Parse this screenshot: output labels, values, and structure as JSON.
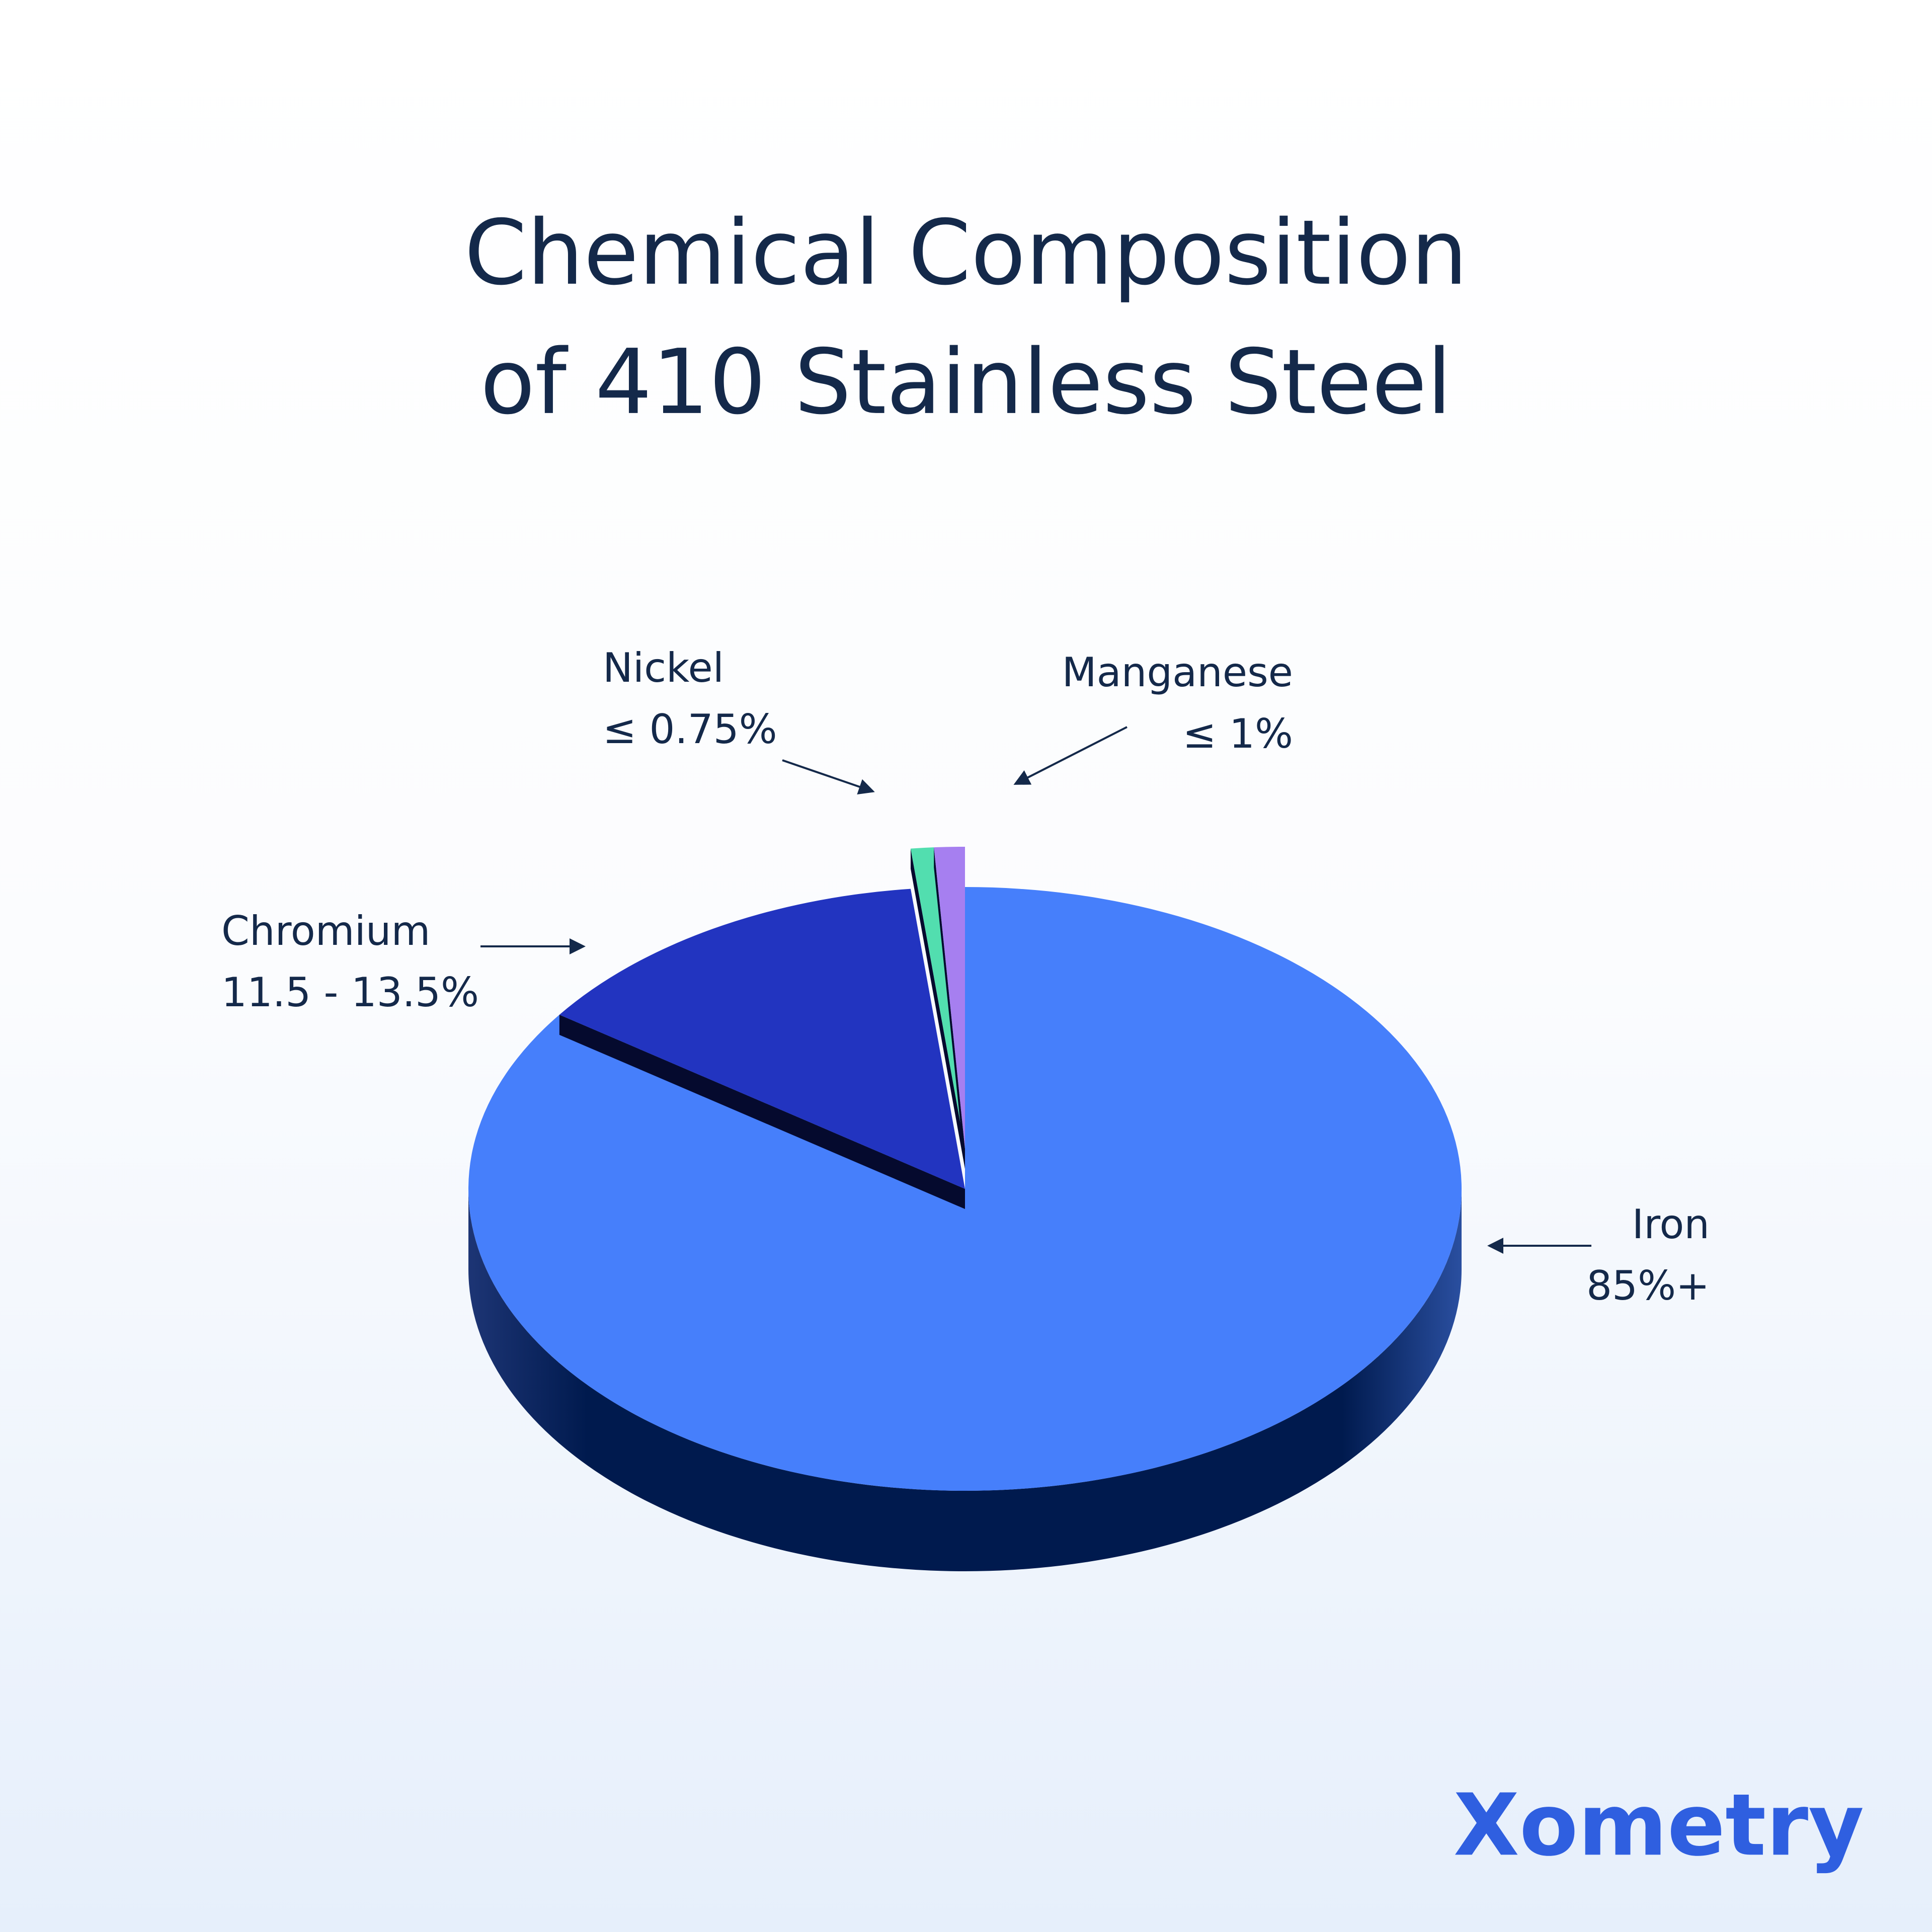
{
  "chart_data": {
    "type": "pie",
    "title": [
      "Chemical Composition",
      "of 410 Stainless Steel"
    ],
    "categories": [
      "Iron",
      "Chromium",
      "Nickel",
      "Manganese"
    ],
    "values": [
      85,
      13.5,
      0.75,
      1
    ],
    "value_labels": [
      "85%+",
      "11.5 - 13.5%",
      "≤ 0.75%",
      "≤ 1%"
    ],
    "colors": [
      "#467ffb",
      "#2234c0",
      "#52deaf",
      "#a67ff0"
    ]
  },
  "logo": "Xometry"
}
